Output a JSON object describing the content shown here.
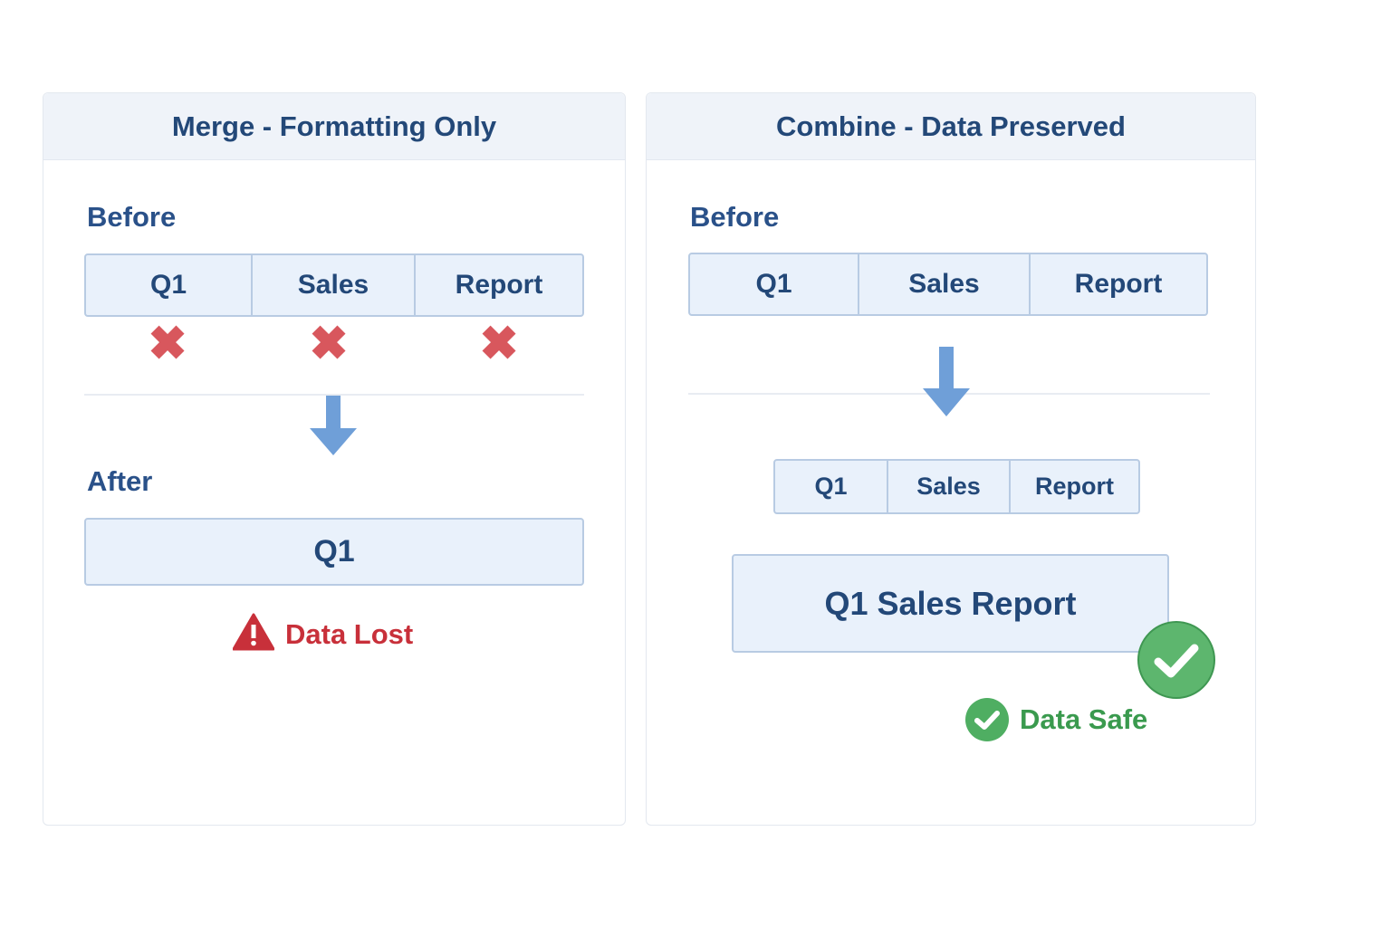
{
  "left_panel": {
    "title": "Merge - Formatting Only",
    "before_label": "Before",
    "before_cells": [
      "Q1",
      "Sales",
      "Report"
    ],
    "after_label": "After",
    "after_cell": "Q1",
    "status": {
      "text": "Data Lost",
      "icon": "warning-icon",
      "color": "#c8303a"
    },
    "cell_marks_icon": "x-icon"
  },
  "right_panel": {
    "title": "Combine - Data Preserved",
    "before_label": "Before",
    "before_cells": [
      "Q1",
      "Sales",
      "Report"
    ],
    "combined_cells": [
      "Q1",
      "Sales",
      "Report"
    ],
    "result_cell": "Q1 Sales Report",
    "status": {
      "text": "Data Safe",
      "icon": "check-circle-icon",
      "color": "#3a9a4e"
    }
  },
  "colors": {
    "text": "#234878",
    "arrow": "#6f9fd8",
    "cell_bg": "#e9f1fb",
    "x_mark": "#d8575d"
  }
}
